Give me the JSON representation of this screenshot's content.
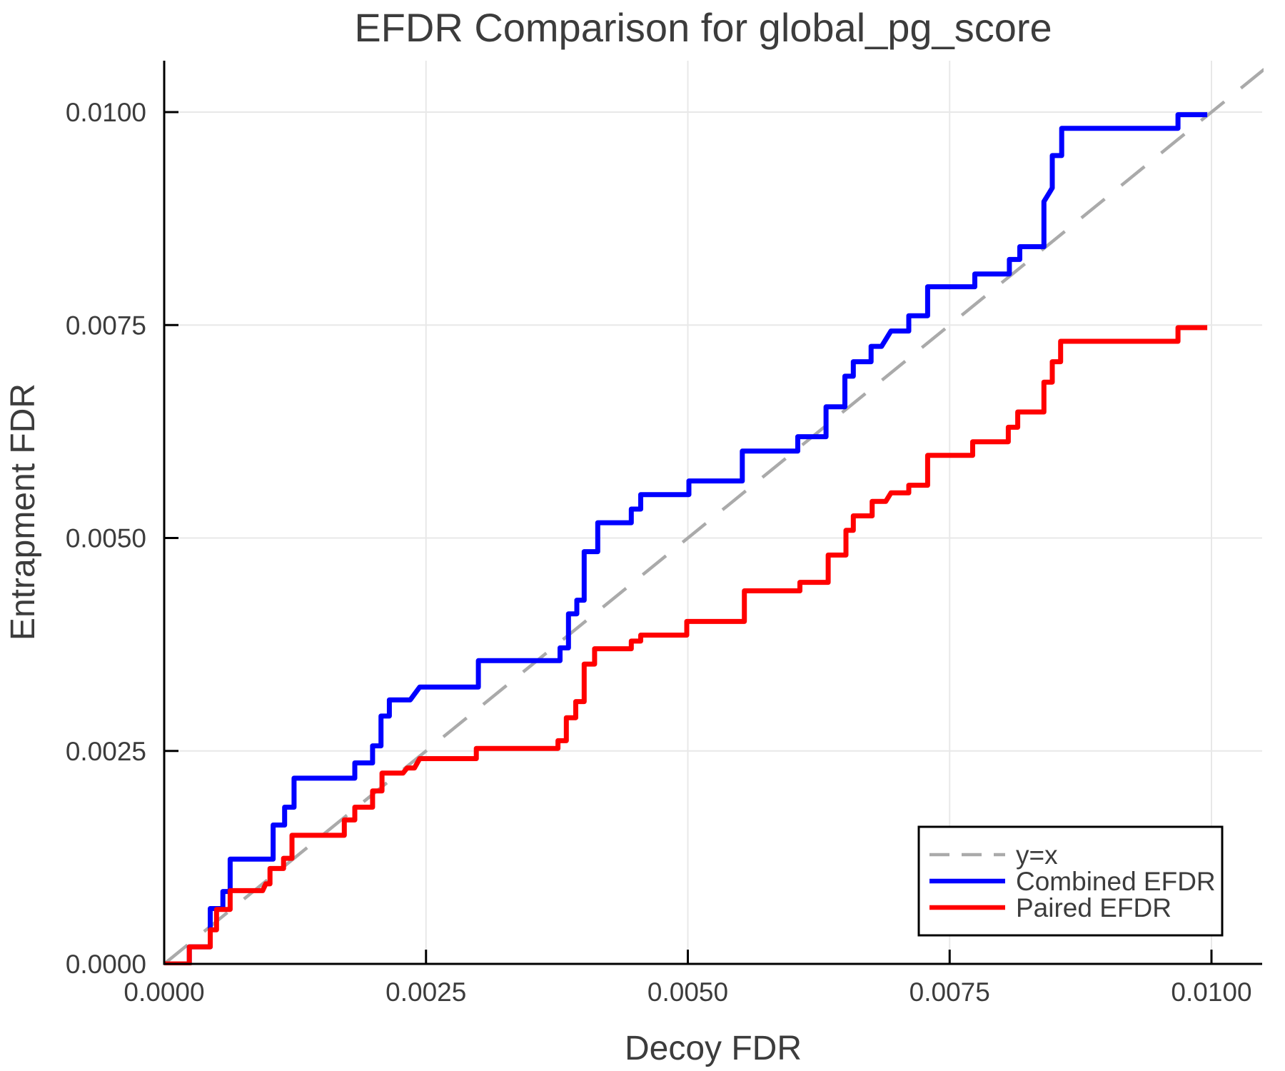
{
  "title": "EFDR Comparison for global_pg_score",
  "chart_data": {
    "type": "line",
    "title": "EFDR Comparison for global_pg_score",
    "xlabel": "Decoy FDR",
    "ylabel": "Entrapment FDR",
    "xlim": [
      0,
      0.010484
    ],
    "ylim": [
      0,
      0.010604
    ],
    "grid": true,
    "xticks": {
      "values": [
        0,
        0.0025,
        0.005,
        0.0075,
        0.01
      ],
      "labels": [
        "0.0000",
        "0.0025",
        "0.0050",
        "0.0075",
        "0.0100"
      ]
    },
    "yticks": {
      "values": [
        0,
        0.0025,
        0.005,
        0.0075,
        0.01
      ],
      "labels": [
        "0.0000",
        "0.0025",
        "0.0050",
        "0.0075",
        "0.0100"
      ]
    },
    "colors": {
      "grid": "#e8e8e8",
      "spine": "#000000",
      "text": "#3c3c3c",
      "diagonal": "#aaaaaa",
      "combined": "#0000ff",
      "paired": "#ff0000",
      "legend_border": "#000000",
      "legend_bg": "#ffffff"
    },
    "legend": {
      "position": "bottom-right",
      "entries": [
        {
          "label": "y=x",
          "series": "diagonal"
        },
        {
          "label": "Combined EFDR",
          "series": "combined"
        },
        {
          "label": "Paired EFDR",
          "series": "paired"
        }
      ]
    },
    "series": [
      {
        "id": "diagonal",
        "name": "y=x",
        "style": "dashed",
        "color": "#aaaaaa",
        "points": [
          [
            0,
            0
          ],
          [
            0.0106,
            0.0106
          ]
        ]
      },
      {
        "id": "combined",
        "name": "Combined EFDR",
        "style": "solid",
        "color": "#0000ff",
        "points": [
          [
            0,
            0
          ],
          [
            0.00024,
            0
          ],
          [
            0.00024,
            0.0002
          ],
          [
            0.00044,
            0.0002
          ],
          [
            0.00044,
            0.00065
          ],
          [
            0.00056,
            0.00065
          ],
          [
            0.00056,
            0.00085
          ],
          [
            0.00063,
            0.00085
          ],
          [
            0.00063,
            0.00123
          ],
          [
            0.00104,
            0.00123
          ],
          [
            0.00104,
            0.00163
          ],
          [
            0.00115,
            0.00163
          ],
          [
            0.00115,
            0.00184
          ],
          [
            0.00124,
            0.00184
          ],
          [
            0.00124,
            0.00218
          ],
          [
            0.00182,
            0.00218
          ],
          [
            0.00182,
            0.00236
          ],
          [
            0.00199,
            0.00236
          ],
          [
            0.00199,
            0.00256
          ],
          [
            0.00207,
            0.00256
          ],
          [
            0.00207,
            0.00291
          ],
          [
            0.00215,
            0.00291
          ],
          [
            0.00215,
            0.0031
          ],
          [
            0.00235,
            0.0031
          ],
          [
            0.00244,
            0.00325
          ],
          [
            0.003,
            0.00325
          ],
          [
            0.003,
            0.00356
          ],
          [
            0.00378,
            0.00356
          ],
          [
            0.00378,
            0.00371
          ],
          [
            0.00386,
            0.00371
          ],
          [
            0.00386,
            0.00411
          ],
          [
            0.00394,
            0.00411
          ],
          [
            0.00394,
            0.00427
          ],
          [
            0.00401,
            0.00427
          ],
          [
            0.00401,
            0.00484
          ],
          [
            0.00414,
            0.00484
          ],
          [
            0.00414,
            0.00518
          ],
          [
            0.00446,
            0.00518
          ],
          [
            0.00446,
            0.00534
          ],
          [
            0.00455,
            0.00534
          ],
          [
            0.00455,
            0.00551
          ],
          [
            0.00501,
            0.00551
          ],
          [
            0.00501,
            0.00567
          ],
          [
            0.00552,
            0.00567
          ],
          [
            0.00552,
            0.00602
          ],
          [
            0.00605,
            0.00602
          ],
          [
            0.00605,
            0.00619
          ],
          [
            0.00632,
            0.00619
          ],
          [
            0.00632,
            0.00654
          ],
          [
            0.0065,
            0.00654
          ],
          [
            0.0065,
            0.0069
          ],
          [
            0.00658,
            0.0069
          ],
          [
            0.00658,
            0.00707
          ],
          [
            0.00675,
            0.00707
          ],
          [
            0.00675,
            0.00725
          ],
          [
            0.00685,
            0.00725
          ],
          [
            0.00694,
            0.00743
          ],
          [
            0.00711,
            0.00743
          ],
          [
            0.00711,
            0.00761
          ],
          [
            0.00729,
            0.00761
          ],
          [
            0.00729,
            0.00795
          ],
          [
            0.00774,
            0.00795
          ],
          [
            0.00774,
            0.0081
          ],
          [
            0.00807,
            0.0081
          ],
          [
            0.00807,
            0.00827
          ],
          [
            0.00817,
            0.00827
          ],
          [
            0.00817,
            0.00842
          ],
          [
            0.0084,
            0.00842
          ],
          [
            0.0084,
            0.00895
          ],
          [
            0.00845,
            0.00905
          ],
          [
            0.00848,
            0.00911
          ],
          [
            0.00848,
            0.00949
          ],
          [
            0.00857,
            0.00949
          ],
          [
            0.00857,
            0.00981
          ],
          [
            0.00968,
            0.00981
          ],
          [
            0.00968,
            0.00997
          ],
          [
            0.00996,
            0.00997
          ]
        ]
      },
      {
        "id": "paired",
        "name": "Paired EFDR",
        "style": "solid",
        "color": "#ff0000",
        "points": [
          [
            0,
            0
          ],
          [
            0.00024,
            0
          ],
          [
            0.00024,
            0.0002
          ],
          [
            0.00044,
            0.0002
          ],
          [
            0.00044,
            0.0004
          ],
          [
            0.0005,
            0.0004
          ],
          [
            0.0005,
            0.00064
          ],
          [
            0.00063,
            0.00064
          ],
          [
            0.00063,
            0.00086
          ],
          [
            0.00094,
            0.00086
          ],
          [
            0.00097,
            0.00094
          ],
          [
            0.00101,
            0.00094
          ],
          [
            0.00101,
            0.00112
          ],
          [
            0.00114,
            0.00112
          ],
          [
            0.00114,
            0.00124
          ],
          [
            0.00122,
            0.00124
          ],
          [
            0.00122,
            0.00151
          ],
          [
            0.00172,
            0.00151
          ],
          [
            0.00172,
            0.00169
          ],
          [
            0.00182,
            0.00169
          ],
          [
            0.00182,
            0.00184
          ],
          [
            0.00199,
            0.00184
          ],
          [
            0.00199,
            0.00203
          ],
          [
            0.00208,
            0.00203
          ],
          [
            0.00208,
            0.00224
          ],
          [
            0.00228,
            0.00224
          ],
          [
            0.00232,
            0.0023
          ],
          [
            0.00239,
            0.0023
          ],
          [
            0.00244,
            0.00241
          ],
          [
            0.00298,
            0.00241
          ],
          [
            0.00298,
            0.00253
          ],
          [
            0.00376,
            0.00253
          ],
          [
            0.00376,
            0.00262
          ],
          [
            0.00384,
            0.00262
          ],
          [
            0.00384,
            0.00289
          ],
          [
            0.00393,
            0.00289
          ],
          [
            0.00393,
            0.00308
          ],
          [
            0.00401,
            0.00308
          ],
          [
            0.00401,
            0.00352
          ],
          [
            0.00411,
            0.00352
          ],
          [
            0.00411,
            0.0037
          ],
          [
            0.00446,
            0.0037
          ],
          [
            0.00446,
            0.00379
          ],
          [
            0.00455,
            0.00379
          ],
          [
            0.00455,
            0.00386
          ],
          [
            0.00499,
            0.00386
          ],
          [
            0.00499,
            0.00402
          ],
          [
            0.00554,
            0.00402
          ],
          [
            0.00554,
            0.00438
          ],
          [
            0.00607,
            0.00438
          ],
          [
            0.00607,
            0.00448
          ],
          [
            0.00634,
            0.00448
          ],
          [
            0.00634,
            0.0048
          ],
          [
            0.00651,
            0.0048
          ],
          [
            0.00651,
            0.00509
          ],
          [
            0.00658,
            0.00509
          ],
          [
            0.00658,
            0.00526
          ],
          [
            0.00676,
            0.00526
          ],
          [
            0.00676,
            0.00543
          ],
          [
            0.00689,
            0.00543
          ],
          [
            0.00694,
            0.00553
          ],
          [
            0.00711,
            0.00553
          ],
          [
            0.00711,
            0.00562
          ],
          [
            0.00729,
            0.00562
          ],
          [
            0.00729,
            0.00597
          ],
          [
            0.00772,
            0.00597
          ],
          [
            0.00772,
            0.00613
          ],
          [
            0.00806,
            0.00613
          ],
          [
            0.00806,
            0.0063
          ],
          [
            0.00815,
            0.0063
          ],
          [
            0.00815,
            0.00648
          ],
          [
            0.0084,
            0.00648
          ],
          [
            0.0084,
            0.00683
          ],
          [
            0.00848,
            0.00683
          ],
          [
            0.00848,
            0.00707
          ],
          [
            0.00856,
            0.00707
          ],
          [
            0.00856,
            0.00731
          ],
          [
            0.00968,
            0.00731
          ],
          [
            0.00968,
            0.00747
          ],
          [
            0.00996,
            0.00747
          ]
        ]
      }
    ]
  }
}
